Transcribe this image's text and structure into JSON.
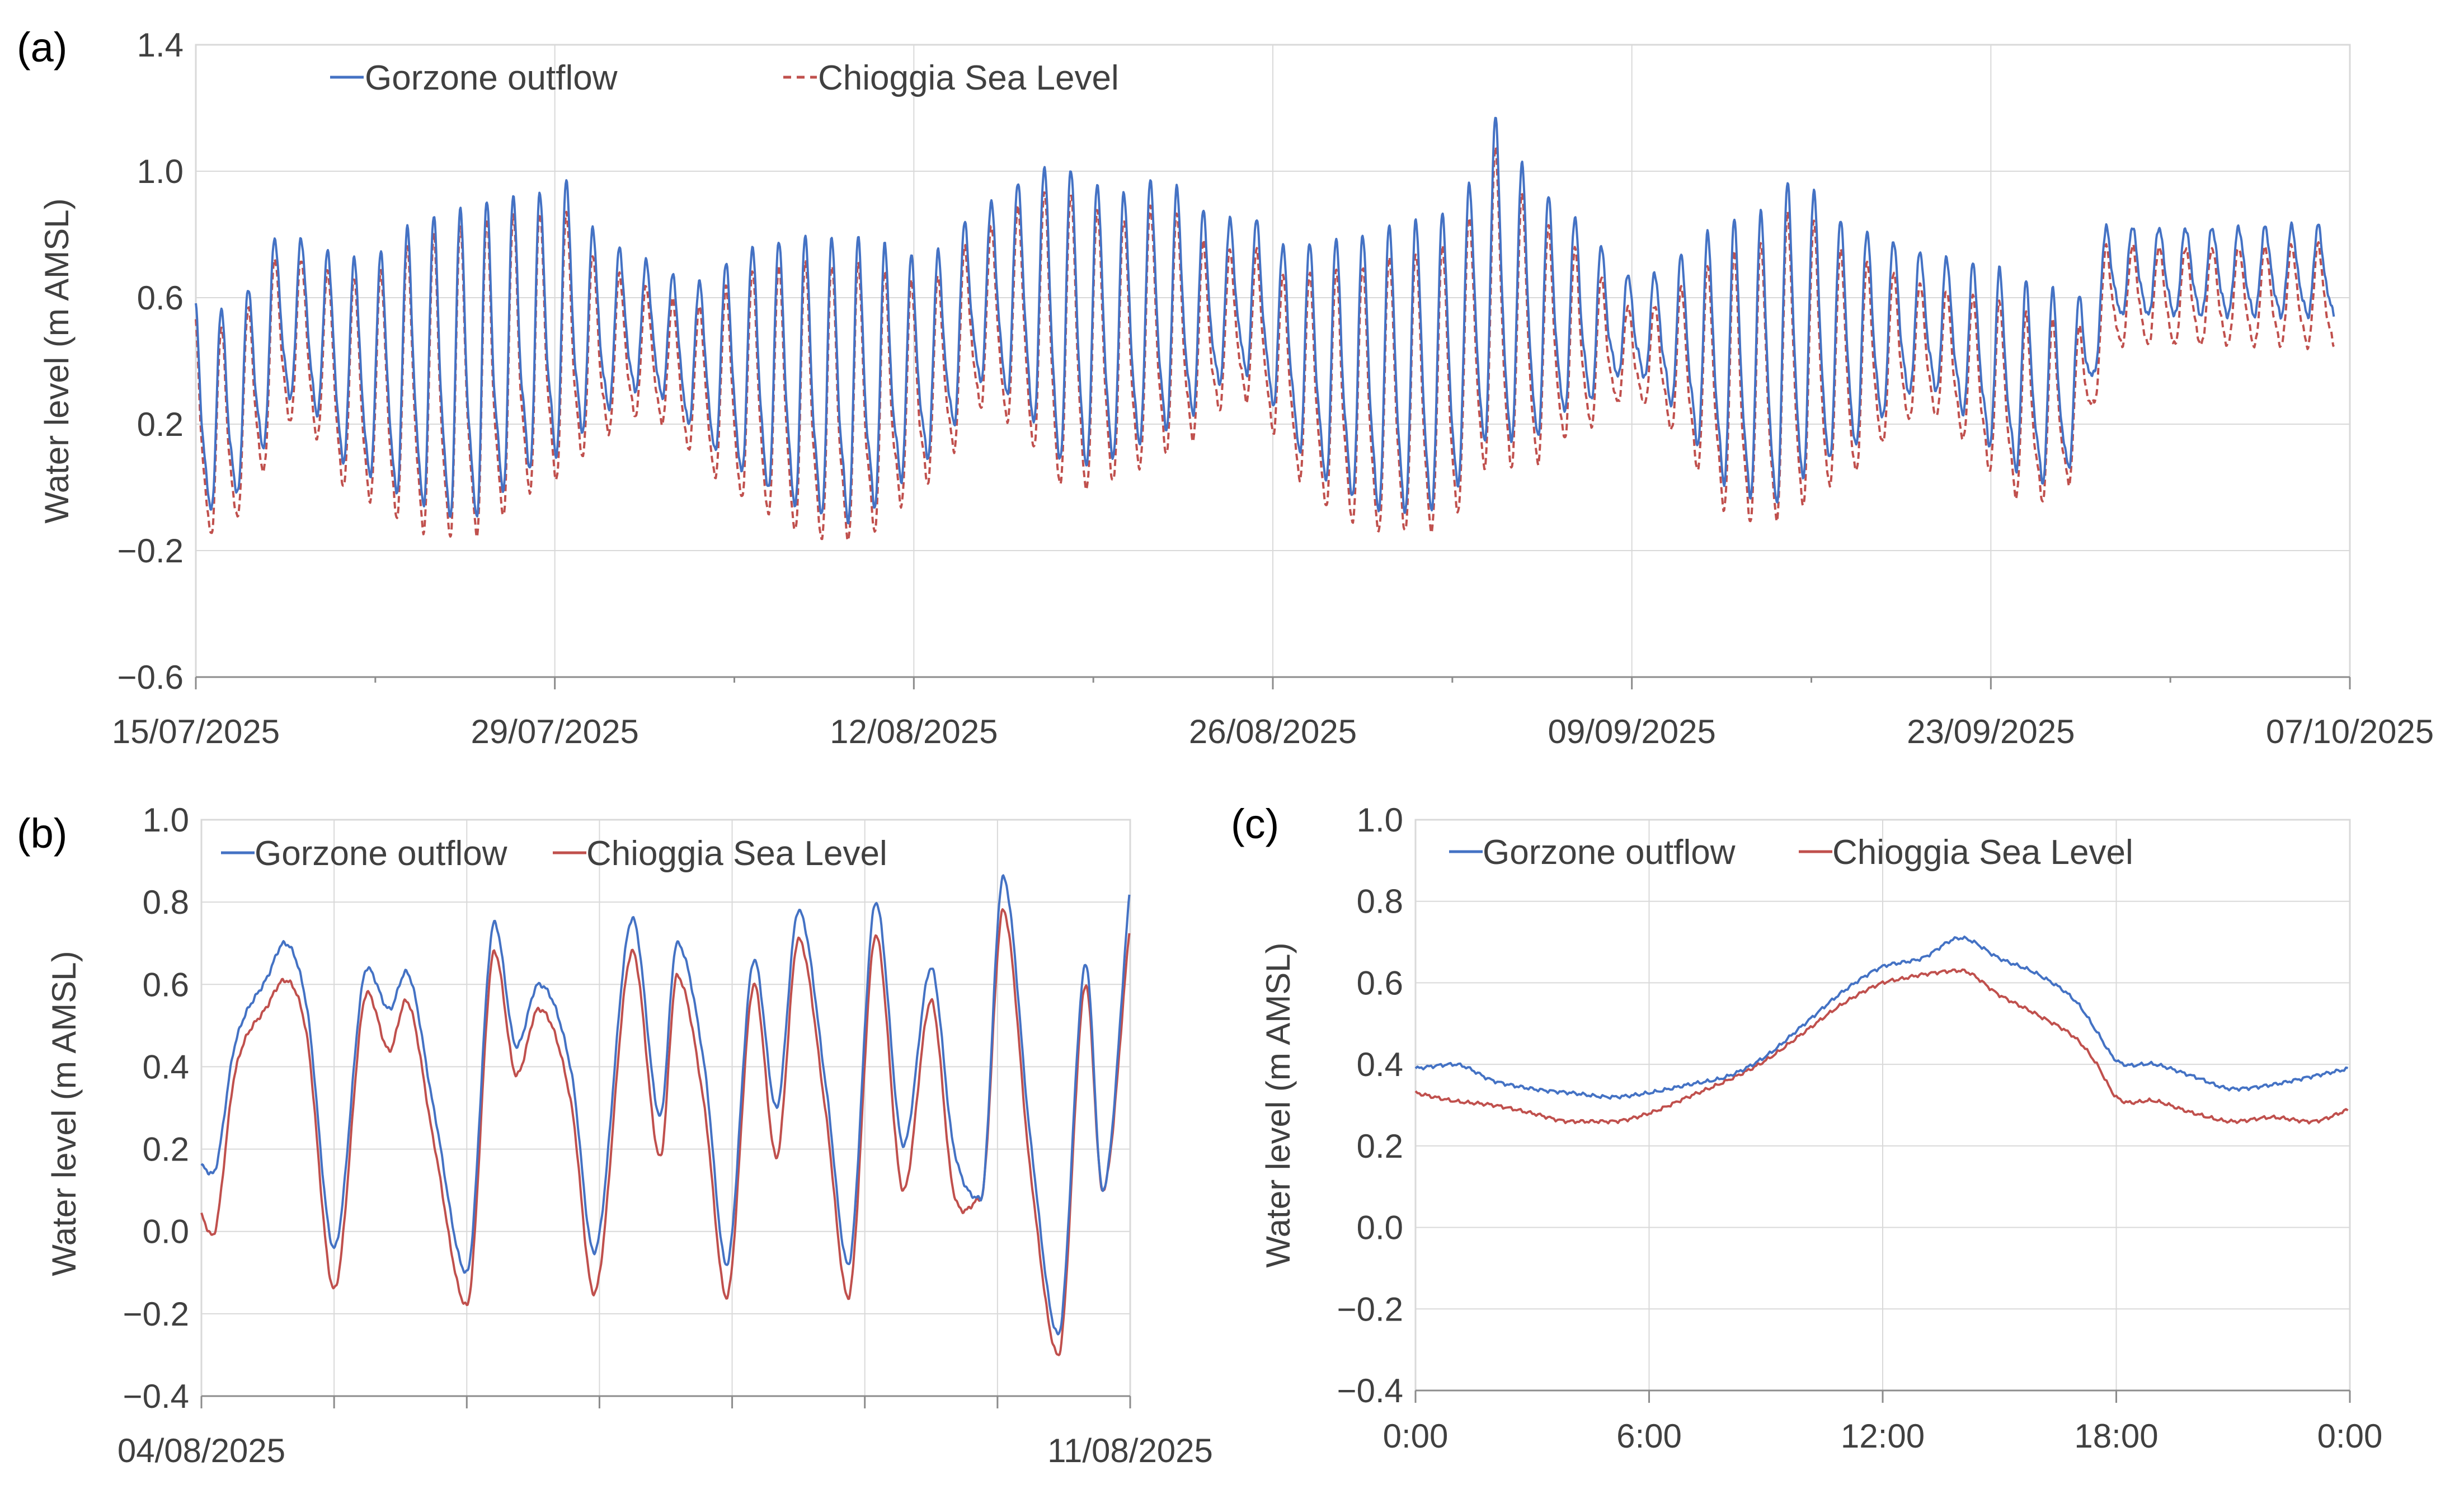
{
  "figure": {
    "panels": [
      {
        "id": "a",
        "label": "(a)"
      },
      {
        "id": "b",
        "label": "(b)"
      },
      {
        "id": "c",
        "label": "(c)"
      }
    ]
  },
  "colors": {
    "gorzone": "#4472c4",
    "chioggia": "#c0504d",
    "grid": "#d9d9d9",
    "axis": "#8c8c8c",
    "text": "#404040"
  },
  "chart_data": [
    {
      "id": "a",
      "type": "line",
      "title": "",
      "xlabel": "",
      "ylabel": "Water level (m AMSL)",
      "x_range": [
        "15/07/2025",
        "07/10/2025"
      ],
      "ylim": [
        -0.6,
        1.4
      ],
      "yticks": [
        -0.6,
        -0.2,
        0.2,
        0.6,
        1.0,
        1.4
      ],
      "ytick_labels": [
        "−0.6",
        "−0.2",
        "0.2",
        "0.6",
        "1.0",
        "1.4"
      ],
      "xtick_labels": [
        "15/07/2025",
        "29/07/2025",
        "12/08/2025",
        "26/08/2025",
        "09/09/2025",
        "23/09/2025",
        "07/10/2025"
      ],
      "grid": true,
      "legend": "top-left",
      "series": [
        {
          "name": "Gorzone outflow",
          "style": "solid",
          "daily_high": [
            0.62,
            0.58,
            0.76,
            0.84,
            0.8,
            0.78,
            0.76,
            0.8,
            0.88,
            0.9,
            0.92,
            0.94,
            0.95,
            0.96,
            1.0,
            0.84,
            0.78,
            0.74,
            0.7,
            0.68,
            0.74,
            0.8,
            0.82,
            0.84,
            0.82,
            0.82,
            0.8,
            0.76,
            0.74,
            0.82,
            0.9,
            0.96,
            1.04,
            1.08,
            1.06,
            1.0,
            0.98,
            1.02,
            0.96,
            0.88,
            0.86,
            0.86,
            0.78,
            0.8,
            0.82,
            0.84,
            0.88,
            0.9,
            0.92,
            0.98,
            1.24,
            1.1,
            0.98,
            0.9,
            0.82,
            0.7,
            0.68,
            0.72,
            0.8,
            0.86,
            0.9,
            0.94,
            1.06,
            0.94,
            0.88,
            0.84,
            0.8,
            0.76,
            0.74,
            0.72,
            0.7,
            0.66,
            0.64,
            0.62,
            0.84
          ],
          "daily_low": [
            -0.18,
            -0.12,
            0.0,
            0.2,
            0.18,
            0.0,
            -0.05,
            -0.12,
            -0.18,
            -0.22,
            -0.26,
            -0.2,
            -0.1,
            -0.05,
            0.0,
            0.12,
            0.2,
            0.25,
            0.2,
            0.1,
            0.0,
            -0.08,
            -0.14,
            -0.2,
            -0.22,
            -0.24,
            -0.18,
            -0.08,
            0.0,
            0.1,
            0.25,
            0.2,
            0.1,
            -0.05,
            -0.08,
            -0.05,
            0.0,
            0.05,
            0.1,
            0.2,
            0.3,
            0.25,
            0.1,
            -0.05,
            -0.12,
            -0.18,
            -0.22,
            -0.22,
            -0.2,
            -0.1,
            0.0,
            0.0,
            0.05,
            0.15,
            0.2,
            0.3,
            0.3,
            0.2,
            0.05,
            -0.1,
            -0.16,
            -0.2,
            -0.14,
            -0.05,
            0.0,
            0.1,
            0.2,
            0.25,
            0.2,
            0.1,
            0.0,
            -0.05,
            -0.08,
            0.1,
            0.5
          ]
        },
        {
          "name": "Chioggia Sea Level",
          "style": "dashed",
          "daily_high": [
            0.56,
            0.52,
            0.7,
            0.78,
            0.74,
            0.72,
            0.7,
            0.74,
            0.82,
            0.84,
            0.86,
            0.88,
            0.89,
            0.9,
            0.9,
            0.76,
            0.7,
            0.66,
            0.62,
            0.6,
            0.66,
            0.72,
            0.74,
            0.76,
            0.74,
            0.74,
            0.72,
            0.68,
            0.66,
            0.74,
            0.82,
            0.88,
            0.96,
            1.0,
            0.98,
            0.92,
            0.9,
            0.94,
            0.88,
            0.78,
            0.76,
            0.76,
            0.68,
            0.7,
            0.72,
            0.74,
            0.78,
            0.8,
            0.82,
            0.88,
            1.14,
            1.0,
            0.88,
            0.8,
            0.72,
            0.6,
            0.58,
            0.62,
            0.7,
            0.76,
            0.8,
            0.84,
            0.96,
            0.84,
            0.78,
            0.74,
            0.7,
            0.66,
            0.64,
            0.62,
            0.6,
            0.56,
            0.54,
            0.52,
            0.78
          ],
          "daily_low": [
            -0.26,
            -0.2,
            -0.08,
            0.12,
            0.1,
            -0.08,
            -0.13,
            -0.2,
            -0.26,
            -0.3,
            -0.3,
            -0.28,
            -0.18,
            -0.13,
            -0.08,
            0.04,
            0.12,
            0.17,
            0.12,
            0.02,
            -0.08,
            -0.16,
            -0.22,
            -0.28,
            -0.3,
            -0.3,
            -0.26,
            -0.16,
            -0.08,
            0.02,
            0.17,
            0.12,
            0.02,
            -0.13,
            -0.16,
            -0.13,
            -0.08,
            -0.03,
            0.02,
            0.12,
            0.22,
            0.17,
            0.02,
            -0.13,
            -0.2,
            -0.26,
            -0.28,
            -0.28,
            -0.28,
            -0.18,
            -0.08,
            -0.08,
            -0.03,
            0.07,
            0.12,
            0.22,
            0.22,
            0.12,
            -0.03,
            -0.18,
            -0.24,
            -0.24,
            -0.22,
            -0.13,
            -0.08,
            0.02,
            0.12,
            0.17,
            0.12,
            0.02,
            -0.08,
            -0.13,
            -0.1,
            0.02,
            0.4
          ]
        }
      ]
    },
    {
      "id": "b",
      "type": "line",
      "title": "",
      "xlabel": "",
      "ylabel": "Water level (m AMSL)",
      "x_range": [
        "04/08/2025",
        "11/08/2025"
      ],
      "ylim": [
        -0.4,
        1.0
      ],
      "yticks": [
        -0.4,
        -0.2,
        0.0,
        0.2,
        0.4,
        0.6,
        0.8,
        1.0
      ],
      "ytick_labels": [
        "−0.4",
        "−0.2",
        "0.0",
        "0.2",
        "0.4",
        "0.6",
        "0.8",
        "1.0"
      ],
      "xtick_labels": [
        "04/08/2025",
        "11/08/2025"
      ],
      "grid": true,
      "legend": "top-left",
      "series": [
        {
          "name": "Gorzone outflow",
          "style": "solid",
          "t_hours": [
            0,
            2,
            6,
            12,
            15,
            19,
            24,
            30,
            34,
            37,
            42,
            48,
            53,
            57,
            61,
            67,
            71,
            78,
            83,
            86,
            91,
            95,
            100,
            104,
            108,
            113,
            117,
            122,
            127,
            132,
            136,
            141,
            145,
            150,
            155,
            160,
            163,
            168
          ],
          "values": [
            0.16,
            0.14,
            0.45,
            0.62,
            0.7,
            0.55,
            -0.04,
            0.64,
            0.54,
            0.63,
            0.3,
            -0.1,
            0.75,
            0.45,
            0.6,
            0.38,
            -0.05,
            0.76,
            0.28,
            0.7,
            0.4,
            -0.08,
            0.66,
            0.3,
            0.78,
            0.35,
            -0.08,
            0.8,
            0.21,
            0.64,
            0.21,
            0.08,
            0.86,
            0.22,
            -0.25,
            0.65,
            0.1,
            0.84
          ]
        },
        {
          "name": "Chioggia Sea Level",
          "style": "solid",
          "t_hours": [
            0,
            2,
            6,
            12,
            15,
            19,
            24,
            30,
            34,
            37,
            42,
            48,
            53,
            57,
            61,
            67,
            71,
            78,
            83,
            86,
            91,
            95,
            100,
            104,
            108,
            113,
            117,
            122,
            127,
            132,
            136,
            141,
            145,
            150,
            155,
            160,
            163,
            168
          ],
          "values": [
            0.04,
            -0.01,
            0.38,
            0.55,
            0.61,
            0.48,
            -0.14,
            0.58,
            0.44,
            0.56,
            0.22,
            -0.18,
            0.68,
            0.38,
            0.54,
            0.3,
            -0.15,
            0.68,
            0.18,
            0.62,
            0.3,
            -0.16,
            0.6,
            0.18,
            0.71,
            0.28,
            -0.16,
            0.72,
            0.1,
            0.56,
            0.1,
            0.08,
            0.78,
            0.14,
            -0.3,
            0.6,
            0.1,
            0.75
          ]
        }
      ]
    },
    {
      "id": "c",
      "type": "line",
      "title": "",
      "xlabel": "",
      "ylabel": "Water level (m AMSL)",
      "xlim_hours": [
        0,
        24
      ],
      "ylim": [
        -0.4,
        1.0
      ],
      "yticks": [
        -0.4,
        -0.2,
        0.0,
        0.2,
        0.4,
        0.6,
        0.8,
        1.0
      ],
      "ytick_labels": [
        "−0.4",
        "−0.2",
        "0.0",
        "0.2",
        "0.4",
        "0.6",
        "0.8",
        "1.0"
      ],
      "xticks_hours": [
        0,
        6,
        12,
        18,
        24
      ],
      "xtick_labels": [
        "0:00",
        "6:00",
        "12:00",
        "18:00",
        "0:00"
      ],
      "grid": true,
      "legend": "top-left",
      "series": [
        {
          "name": "Gorzone outflow",
          "style": "solid",
          "t_hours": [
            0,
            1,
            2,
            3,
            4,
            5,
            6,
            7,
            8,
            9,
            10,
            11,
            12,
            12.5,
            13,
            14,
            15,
            16,
            17,
            17.5,
            18,
            19,
            20,
            21,
            22,
            23,
            24
          ],
          "values": [
            0.39,
            0.4,
            0.36,
            0.34,
            0.33,
            0.32,
            0.33,
            0.35,
            0.37,
            0.42,
            0.5,
            0.58,
            0.64,
            0.65,
            0.66,
            0.71,
            0.66,
            0.62,
            0.55,
            0.48,
            0.41,
            0.4,
            0.37,
            0.34,
            0.35,
            0.37,
            0.39
          ]
        },
        {
          "name": "Chioggia Sea Level",
          "style": "solid",
          "t_hours": [
            0,
            1,
            2,
            3,
            4,
            5,
            6,
            7,
            8,
            9,
            10,
            11,
            12,
            12.5,
            13,
            14,
            15,
            16,
            17,
            17.5,
            18,
            19,
            20,
            21,
            22,
            23,
            24
          ],
          "values": [
            0.33,
            0.31,
            0.3,
            0.28,
            0.26,
            0.26,
            0.28,
            0.32,
            0.36,
            0.41,
            0.48,
            0.55,
            0.6,
            0.61,
            0.62,
            0.63,
            0.57,
            0.52,
            0.46,
            0.4,
            0.32,
            0.31,
            0.28,
            0.26,
            0.27,
            0.26,
            0.29
          ]
        }
      ]
    }
  ]
}
